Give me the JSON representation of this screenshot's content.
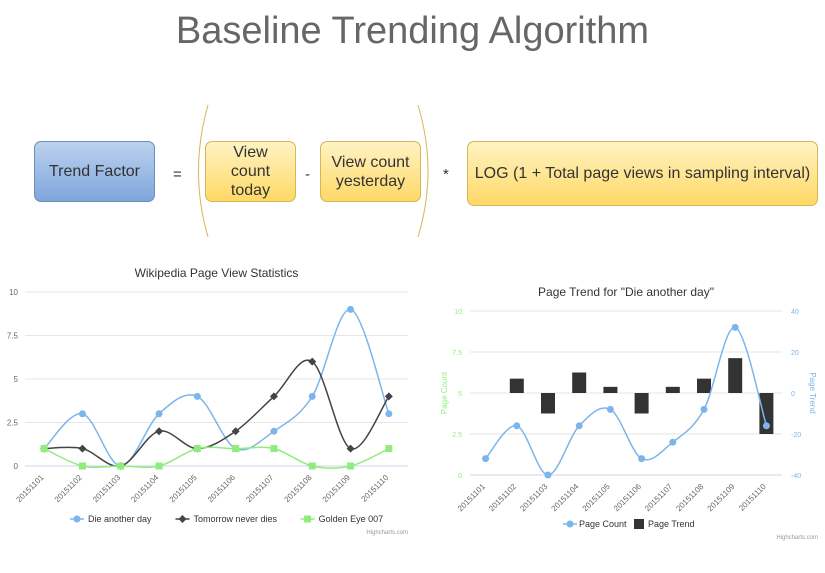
{
  "title": "Baseline Trending Algorithm",
  "formula": {
    "trend_factor": "Trend Factor",
    "equals": "=",
    "view_today": "View count today",
    "minus": "-",
    "view_yesterday": "View count yesterday",
    "times": "*",
    "log_term": "LOG (1 + Total page views in sampling interval)"
  },
  "colors": {
    "die_another_day": "#7cb5ec",
    "tomorrow_never_dies": "#434348",
    "golden_eye": "#90ed7d",
    "page_trend": "#333333"
  },
  "chart_data": [
    {
      "type": "line",
      "title": "Wikipedia Page View Statistics",
      "categories": [
        "20151101",
        "20151102",
        "20151103",
        "20151104",
        "20151105",
        "20151106",
        "20151107",
        "20151108",
        "20151109",
        "20151110"
      ],
      "ylim": [
        0,
        10
      ],
      "yticks": [
        "0",
        "2.5",
        "5",
        "7.5",
        "10"
      ],
      "series": [
        {
          "name": "Die another day",
          "values": [
            1,
            3,
            0,
            3,
            4,
            1,
            2,
            4,
            9,
            3
          ]
        },
        {
          "name": "Tomorrow never dies",
          "values": [
            1,
            1,
            0,
            2,
            1,
            2,
            4,
            6,
            1,
            4
          ]
        },
        {
          "name": "Golden Eye 007",
          "values": [
            1,
            0,
            0,
            0,
            1,
            1,
            1,
            0,
            0,
            1
          ]
        }
      ],
      "legend": "bottom",
      "credits": "Highcharts.com"
    },
    {
      "type": "bar",
      "title": "Page Trend for \"Die another day\"",
      "categories": [
        "20151101",
        "20151102",
        "20151103",
        "20151104",
        "20151105",
        "20151106",
        "20151107",
        "20151108",
        "20151109",
        "20151110"
      ],
      "y_left": {
        "label": "Page Count",
        "ylim": [
          0,
          10
        ],
        "ticks": [
          "0",
          "2.5",
          "5",
          "7.5",
          "10"
        ]
      },
      "y_right": {
        "label": "Page Trend",
        "ylim": [
          -40,
          40
        ],
        "ticks": [
          "-40",
          "-20",
          "0",
          "20",
          "40"
        ]
      },
      "series": [
        {
          "name": "Page Count",
          "type": "line",
          "values": [
            1,
            3,
            0,
            3,
            4,
            1,
            2,
            4,
            9,
            3
          ]
        },
        {
          "name": "Page Trend",
          "type": "bar",
          "values": [
            0,
            7,
            -10,
            10,
            3,
            -10,
            3,
            7,
            17,
            -20
          ]
        }
      ],
      "legend": "bottom",
      "credits": "Highcharts.com"
    }
  ]
}
